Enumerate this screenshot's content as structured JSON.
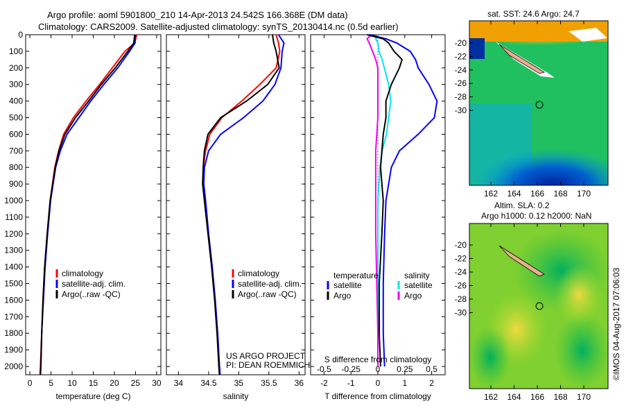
{
  "title_line1": "Argo profile: aoml 5901800_210 14-Apr-2013 24.542S 166.368E (DM data)",
  "title_line2": "Climatology: CARS2009. Satellite-adjusted climatology: synTS_20130414.nc (0.5d earlier)",
  "colors": {
    "climatology": "#ff0000",
    "satellite": "#0000ff",
    "argo": "#000000",
    "sal_satellite": "#00e5ee",
    "sal_argo": "#ee00ee"
  },
  "chart_data": [
    {
      "type": "line",
      "name": "temperature",
      "xlabel": "temperature (deg C)",
      "xlim": [
        -1,
        31
      ],
      "ylim": [
        2050,
        0
      ],
      "xticks": [
        "0",
        "5",
        "10",
        "15",
        "20",
        "25",
        "30"
      ],
      "xtick_values": [
        0,
        5,
        10,
        15,
        20,
        25,
        30
      ],
      "yticks": [
        "0",
        "100",
        "200",
        "300",
        "400",
        "500",
        "600",
        "700",
        "800",
        "900",
        "1000",
        "1100",
        "1200",
        "1300",
        "1400",
        "1500",
        "1600",
        "1700",
        "1800",
        "1900",
        "2000"
      ],
      "depth": [
        0,
        50,
        100,
        200,
        300,
        400,
        500,
        600,
        700,
        800,
        1000,
        1200,
        1400,
        1600,
        1800,
        2000,
        2050
      ],
      "legend": [
        "climatology",
        "satellite-adj. clim.",
        "Argo(..raw -QC)"
      ],
      "series": [
        {
          "name": "climatology",
          "values": [
            25.3,
            24.8,
            22.5,
            19.5,
            16.5,
            13.3,
            10.3,
            8.0,
            6.8,
            5.9,
            4.8,
            4.1,
            3.5,
            3.1,
            2.8,
            2.5,
            2.4
          ]
        },
        {
          "name": "satellite-adj. clim.",
          "values": [
            25.0,
            24.9,
            23.6,
            20.8,
            17.5,
            14.4,
            11.6,
            8.8,
            7.2,
            6.1,
            4.9,
            4.2,
            3.6,
            3.2,
            2.8,
            2.6,
            2.5
          ]
        },
        {
          "name": "Argo(..raw -QC)",
          "values": [
            24.8,
            24.6,
            23.2,
            20.2,
            16.9,
            13.9,
            10.8,
            8.3,
            6.9,
            6.0,
            4.8,
            4.1,
            3.5,
            3.1,
            2.8,
            2.6,
            2.5
          ]
        }
      ]
    },
    {
      "type": "line",
      "name": "salinity",
      "xlabel": "salinity",
      "xlim": [
        33.8,
        36.1
      ],
      "ylim": [
        2050,
        0
      ],
      "xticks": [
        "34",
        "34.5",
        "35",
        "35.5",
        "36"
      ],
      "xtick_values": [
        34,
        34.5,
        35,
        35.5,
        36
      ],
      "depth": [
        0,
        50,
        100,
        200,
        300,
        400,
        500,
        600,
        700,
        800,
        900,
        1000,
        1200,
        1400,
        1600,
        1800,
        2000,
        2050
      ],
      "legend": [
        "climatology",
        "satellite-adj. clim.",
        "Argo(..raw -QC)"
      ],
      "annotation": [
        "US ARGO PROJECT",
        "PI: DEAN ROEMMICH"
      ],
      "series": [
        {
          "name": "climatology",
          "values": [
            35.62,
            35.66,
            35.68,
            35.62,
            35.35,
            35.05,
            34.72,
            34.52,
            34.45,
            34.41,
            34.41,
            34.44,
            34.5,
            34.56,
            34.61,
            34.65,
            34.68,
            34.69
          ]
        },
        {
          "name": "satellite-adj. clim.",
          "values": [
            35.66,
            35.75,
            35.72,
            35.7,
            35.6,
            35.4,
            35.08,
            34.7,
            34.5,
            34.43,
            34.42,
            34.45,
            34.5,
            34.56,
            34.61,
            34.65,
            34.68,
            34.69
          ]
        },
        {
          "name": "Argo(..raw -QC)",
          "values": [
            35.56,
            35.58,
            35.62,
            35.67,
            35.48,
            35.13,
            34.7,
            34.49,
            34.43,
            34.41,
            34.4,
            34.43,
            34.49,
            34.55,
            34.6,
            34.64,
            34.67,
            34.68
          ]
        }
      ]
    },
    {
      "type": "line",
      "name": "difference",
      "xlabel": "T difference from climatology",
      "xlabel2": "S difference from climatology",
      "xlim": [
        -2.5,
        2.5
      ],
      "ylim": [
        2050,
        0
      ],
      "xticks": [
        "-2",
        "-1",
        "0",
        "1",
        "2"
      ],
      "xtick_values": [
        -2,
        -1,
        0,
        1,
        2
      ],
      "xticks2": [
        "-0.5",
        "-0.25",
        "0",
        "0.25",
        "0.5"
      ],
      "xtick2_values": [
        -0.5,
        -0.25,
        0,
        0.25,
        0.5
      ],
      "legend_left_title": "temperature",
      "legend_right_title": "salinity",
      "legend_left": [
        "satellite",
        "Argo"
      ],
      "legend_right": [
        "satellite",
        "Argo"
      ],
      "depth": [
        0,
        25,
        50,
        100,
        150,
        200,
        300,
        400,
        500,
        600,
        700,
        800,
        1000,
        1200,
        1500,
        1800,
        2000
      ],
      "series": [
        {
          "name": "T satellite",
          "values": [
            -0.3,
            0.3,
            0.7,
            1.2,
            1.4,
            1.5,
            1.9,
            2.2,
            2.1,
            1.5,
            0.8,
            0.5,
            0.3,
            0.25,
            0.2,
            0.2,
            0.25
          ]
        },
        {
          "name": "T Argo",
          "values": [
            -0.4,
            0.2,
            0.4,
            0.6,
            0.9,
            0.8,
            0.5,
            0.3,
            0.3,
            0.2,
            0.15,
            0.1,
            0.2,
            0.15,
            0.05,
            0.05,
            0.1
          ]
        },
        {
          "name": "S satellite",
          "values": [
            0.0,
            -0.02,
            0.0,
            0.01,
            0.04,
            0.06,
            0.1,
            0.12,
            0.1,
            0.08,
            0.04,
            0.02,
            0.0,
            0.0,
            0.0,
            0.0,
            0.0
          ]
        },
        {
          "name": "S Argo",
          "values": [
            -0.06,
            -0.1,
            -0.08,
            -0.05,
            -0.02,
            0.0,
            0.0,
            0.0,
            0.0,
            -0.01,
            -0.02,
            -0.02,
            -0.02,
            -0.02,
            -0.01,
            0.0,
            0.0
          ]
        }
      ]
    }
  ],
  "maps": [
    {
      "title": "sat. SST: 24.6 Argo: 24.7",
      "xticks": [
        "162",
        "164",
        "166",
        "168",
        "170"
      ],
      "yticks": [
        "-20",
        "-22",
        "-24",
        "-26",
        "-28",
        "-30"
      ]
    },
    {
      "title": "Altim. SLA: 0.2",
      "title2": "Argo h1000: 0.12 h2000: NaN",
      "xticks": [
        "162",
        "164",
        "166",
        "168",
        "170"
      ],
      "yticks": [
        "-20",
        "-22",
        "-24",
        "-26",
        "-28",
        "-30"
      ]
    }
  ],
  "credit": "©IMOS 04-Aug-2017 07:06:03"
}
